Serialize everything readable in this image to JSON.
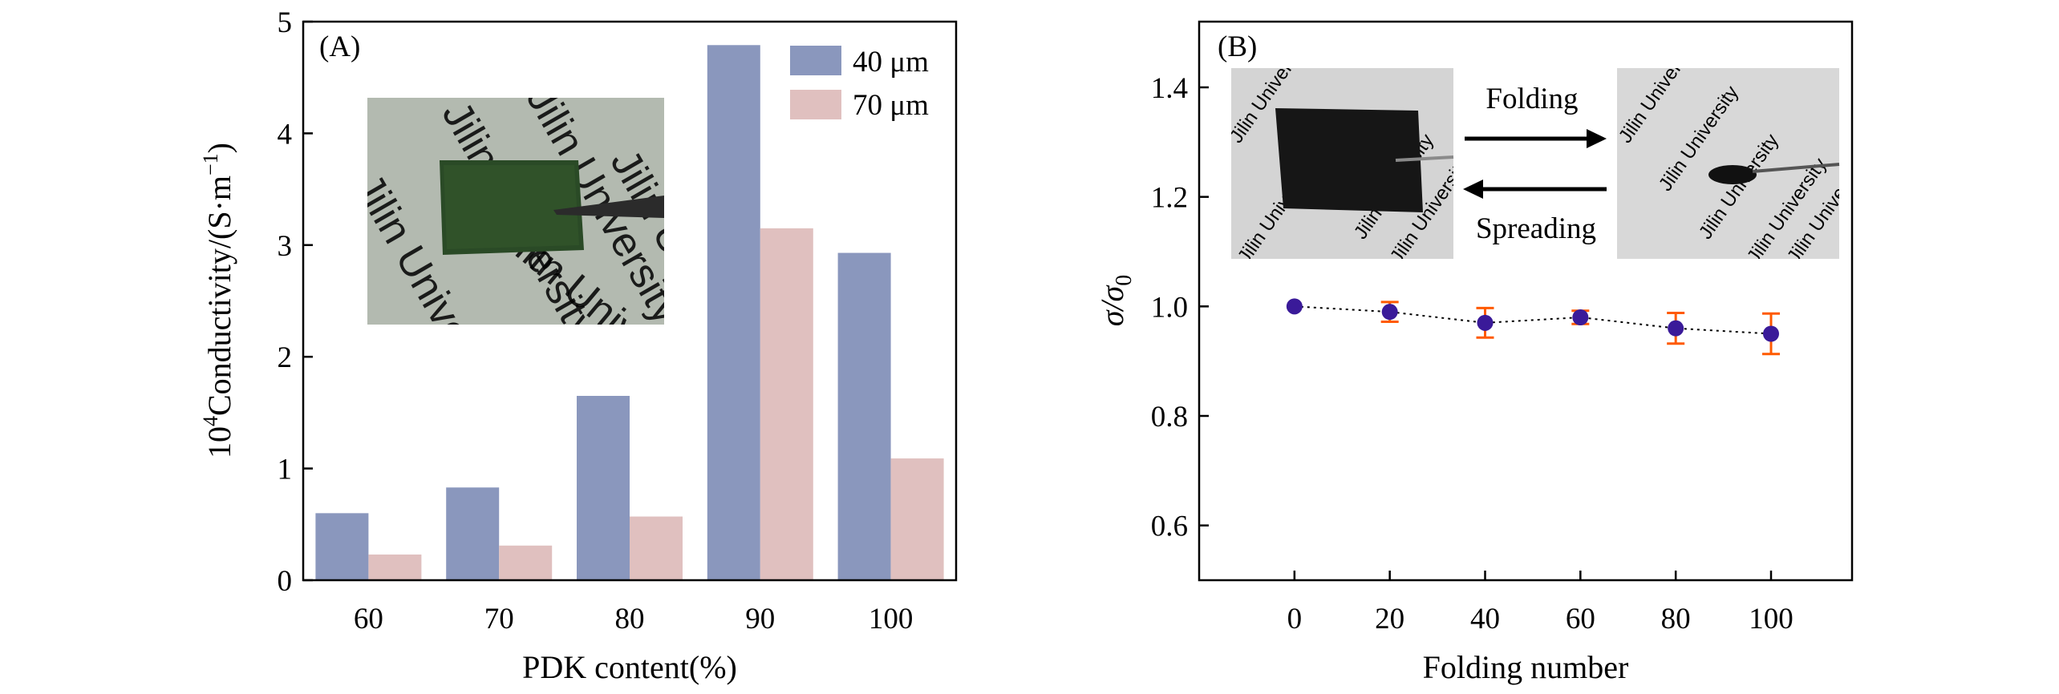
{
  "colors": {
    "series_40": "#8a97bd",
    "series_70": "#e0c0bf",
    "marker": "#3a1a99",
    "errorbar": "#ff5a00",
    "axis": "#000000"
  },
  "inset_a": {
    "watermark": "Jilin University",
    "film_color": "#2a4a26",
    "background": "#b3bab0"
  },
  "inset_b": {
    "watermark": "Jilin University",
    "folding_label": "Folding",
    "spreading_label": "Spreading"
  },
  "chart_data": [
    {
      "type": "bar",
      "panel_label": "(A)",
      "xlabel": "PDK content(%)",
      "ylabel_prefix": "10",
      "ylabel_sup": "4",
      "ylabel_main": "Conductivity/(S·m",
      "ylabel_sup2": "−1",
      "ylabel_end": ")",
      "categories": [
        "60",
        "70",
        "80",
        "90",
        "100"
      ],
      "series": [
        {
          "name": "40 μm",
          "values": [
            0.6,
            0.83,
            1.65,
            4.79,
            2.93
          ]
        },
        {
          "name": "70 μm",
          "values": [
            0.23,
            0.31,
            0.57,
            3.15,
            1.09
          ]
        }
      ],
      "ylim": [
        0,
        5
      ],
      "yticks": [
        "0",
        "1",
        "2",
        "3",
        "4",
        "5"
      ],
      "legend_position": "top-right"
    },
    {
      "type": "scatter",
      "panel_label": "(B)",
      "xlabel": "Folding number",
      "ylabel_main": "σ/σ",
      "ylabel_sub": "0",
      "x": [
        0,
        20,
        40,
        60,
        80,
        100
      ],
      "y": [
        1.0,
        0.99,
        0.97,
        0.98,
        0.96,
        0.95
      ],
      "yerr": [
        0.0,
        0.018,
        0.027,
        0.012,
        0.028,
        0.037
      ],
      "xticks": [
        "0",
        "20",
        "40",
        "60",
        "80",
        "100"
      ],
      "yticks": [
        "0.6",
        "0.8",
        "1.0",
        "1.2",
        "1.4"
      ],
      "xlim": [
        -20,
        117
      ],
      "ylim": [
        0.5,
        1.52
      ],
      "connector": "dotted"
    }
  ]
}
